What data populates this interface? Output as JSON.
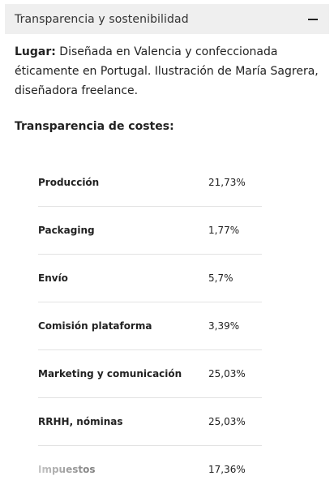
{
  "accordion": {
    "title": "Transparencia y sostenibilidad",
    "toggle_icon": "minus-icon"
  },
  "description": {
    "label": "Lugar:",
    "text": " Diseñada en Valencia y confeccionada éticamente en Portugal. Ilustración de María Sagrera, diseñadora freelance."
  },
  "costs": {
    "heading": "Transparencia de costes:",
    "rows": [
      {
        "label": "Producción",
        "value": "21,73%"
      },
      {
        "label": "Packaging",
        "value": "1,77%"
      },
      {
        "label": "Envío",
        "value": "5,7%"
      },
      {
        "label": "Comisión plataforma",
        "value": "3,39%"
      },
      {
        "label": "Marketing y comunicación",
        "value": "25,03%"
      },
      {
        "label": "RRHH, nóminas",
        "value": "25,03%"
      },
      {
        "label": "Impuestos",
        "value": "17,36%"
      }
    ]
  }
}
